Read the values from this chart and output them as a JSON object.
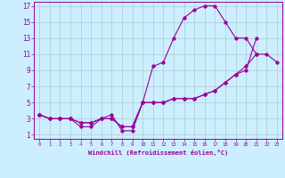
{
  "xlabel": "Windchill (Refroidissement éolien,°C)",
  "background_color": "#cceeff",
  "grid_color": "#aacccc",
  "line_color": "#990099",
  "xlim": [
    -0.5,
    23.5
  ],
  "ylim": [
    0.5,
    17.5
  ],
  "yticks": [
    1,
    3,
    5,
    7,
    9,
    11,
    13,
    15,
    17
  ],
  "xticks": [
    0,
    1,
    2,
    3,
    4,
    5,
    6,
    7,
    8,
    9,
    10,
    11,
    12,
    13,
    14,
    15,
    16,
    17,
    18,
    19,
    20,
    21,
    22,
    23
  ],
  "line1_x": [
    0,
    1,
    2,
    3,
    4,
    5,
    6,
    7,
    8,
    9,
    10,
    11,
    12,
    13,
    14,
    15,
    16,
    17,
    18,
    19,
    20,
    21
  ],
  "line1_y": [
    3.5,
    3.0,
    3.0,
    3.0,
    2.0,
    2.0,
    3.0,
    3.5,
    1.5,
    1.5,
    5.0,
    9.5,
    10.0,
    13.0,
    15.5,
    16.5,
    17.0,
    17.0,
    15.0,
    13.0,
    13.0,
    11.0
  ],
  "line2_x": [
    0,
    1,
    2,
    3,
    4,
    5,
    6,
    7,
    8,
    9,
    10,
    11,
    12,
    13,
    14,
    15,
    16,
    17,
    18,
    19,
    20,
    21,
    22,
    23
  ],
  "line2_y": [
    3.5,
    3.0,
    3.0,
    3.0,
    2.5,
    2.5,
    3.0,
    3.0,
    2.0,
    2.0,
    5.0,
    5.0,
    5.0,
    5.5,
    5.5,
    5.5,
    6.0,
    6.5,
    7.5,
    8.5,
    9.5,
    11.0,
    11.0,
    10.0
  ],
  "line3_x": [
    0,
    1,
    2,
    3,
    4,
    5,
    6,
    7,
    8,
    9,
    10,
    11,
    12,
    13,
    14,
    15,
    16,
    17,
    18,
    19,
    20,
    21
  ],
  "line3_y": [
    3.5,
    3.0,
    3.0,
    3.0,
    2.5,
    2.5,
    3.0,
    3.0,
    2.0,
    2.0,
    5.0,
    5.0,
    5.0,
    5.5,
    5.5,
    5.5,
    6.0,
    6.5,
    7.5,
    8.5,
    9.0,
    13.0
  ]
}
